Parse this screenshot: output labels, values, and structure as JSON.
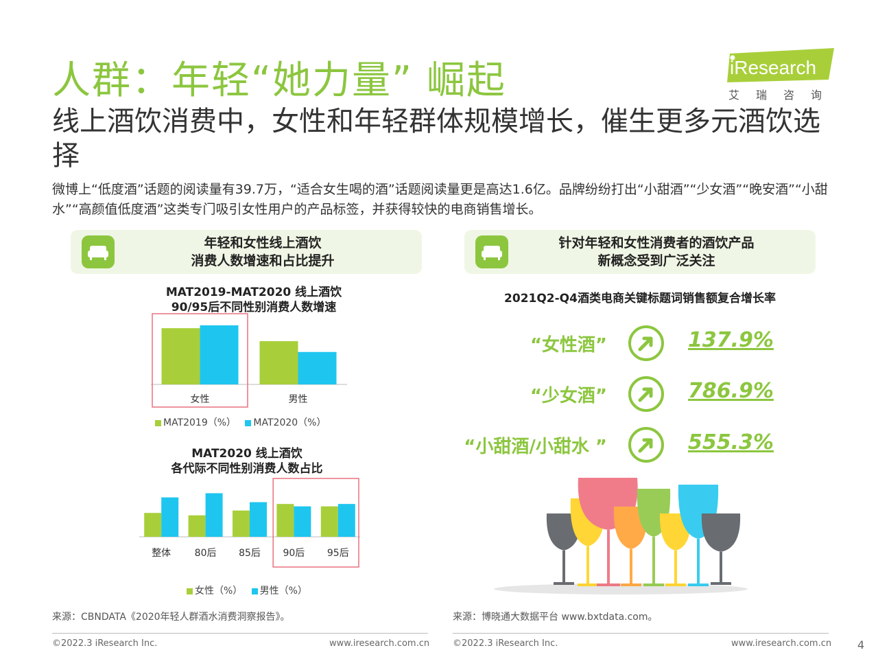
{
  "header": {
    "title": "人群：年轻“她力量” 崛起",
    "subtitle": "线上酒饮消费中，女性和年轻群体规模增长，催生更多元酒饮选择",
    "body": "微博上“低度酒”话题的阅读量有39.7万，“适合女生喝的酒”话题阅读量更是高达1.6亿。品牌纷纷打出“小甜酒”“少女酒”“晚安酒”“小甜水”“高颜值低度酒”这类专门吸引女性用户的产品标签，并获得较快的电商销售增长。"
  },
  "logo": {
    "brand": "iResearch",
    "sub": "艾瑞咨询"
  },
  "colors": {
    "accent": "#8cc63f",
    "lime": "#a8cf3a",
    "cyan": "#1ec6ef",
    "highlight": "#e8717f"
  },
  "left_panel": {
    "header_line1": "年轻和女性线上酒饮",
    "header_line2": "消费人数增速和占比提升",
    "icon": "sofa-icon"
  },
  "right_panel": {
    "header_line1": "针对年轻和女性消费者的酒饮产品",
    "header_line2": "新概念受到广泛关注",
    "icon": "sofa-icon",
    "chart_title": "2021Q2-Q4酒类电商关键标题词销售额复合增长率",
    "keywords": [
      {
        "label": "“女性酒”",
        "value": "137.9%"
      },
      {
        "label": "“少女酒”",
        "value": "786.9%"
      },
      {
        "label": "“小甜酒/小甜水 ”",
        "value": "555.3%"
      }
    ],
    "illustration": "wine-glasses-illustration"
  },
  "chart_data": [
    {
      "type": "bar",
      "title": "MAT2019-MAT2020 线上酒饮",
      "subtitle": "90/95后不同性别消费人数增速",
      "categories": [
        "女性",
        "男性"
      ],
      "series": [
        {
          "name": "MAT2019（%）",
          "color": "#a8cf3a",
          "values": [
            0.78,
            0.6
          ]
        },
        {
          "name": "MAT2020（%）",
          "color": "#1ec6ef",
          "values": [
            0.82,
            0.45
          ]
        }
      ],
      "ylim": [
        0,
        1
      ],
      "highlight_category": "女性"
    },
    {
      "type": "bar",
      "title": "MAT2020 线上酒饮",
      "subtitle": "各代际不同性别消费人数占比",
      "categories": [
        "整体",
        "80后",
        "85后",
        "90后",
        "95后"
      ],
      "series": [
        {
          "name": "女性（%）",
          "color": "#a8cf3a",
          "values": [
            0.4,
            0.36,
            0.44,
            0.55,
            0.51
          ]
        },
        {
          "name": "男性（%）",
          "color": "#1ec6ef",
          "values": [
            0.66,
            0.73,
            0.58,
            0.51,
            0.55
          ]
        }
      ],
      "ylim": [
        0,
        1
      ],
      "highlight_categories": [
        "90后",
        "95后"
      ]
    }
  ],
  "sources": {
    "left": "来源：CBNDATA《2020年轻人群酒水消费洞察报告》。",
    "right": "来源：博晓通大数据平台 www.bxtdata.com。"
  },
  "footer": {
    "copyright_left": "©2022.3 iResearch Inc.",
    "url_left": "www.iresearch.com.cn",
    "copyright_right": "©2022.3 iResearch Inc.",
    "url_right": "www.iresearch.com.cn",
    "page_number": "4"
  }
}
